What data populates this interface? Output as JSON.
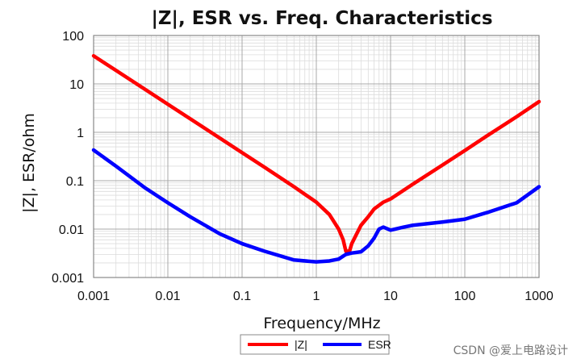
{
  "chart_data": {
    "type": "line",
    "title": "|Z|, ESR vs. Freq. Characteristics",
    "xlabel": "Frequency/MHz",
    "ylabel": "|Z|, ESR/ohm",
    "x_scale": "log",
    "y_scale": "log",
    "xlim": [
      0.001,
      1000
    ],
    "ylim": [
      0.001,
      100
    ],
    "x_ticks": [
      "0.001",
      "0.01",
      "0.1",
      "1",
      "10",
      "100",
      "1000"
    ],
    "y_ticks": [
      "100",
      "10",
      "1",
      "0.1",
      "0.01",
      "0.001"
    ],
    "grid": true,
    "legend_position": "bottom-center",
    "series": [
      {
        "name": "|Z|",
        "color": "#ff0000",
        "points": [
          [
            0.001,
            38
          ],
          [
            0.002,
            19
          ],
          [
            0.005,
            7.6
          ],
          [
            0.01,
            3.8
          ],
          [
            0.02,
            1.9
          ],
          [
            0.05,
            0.76
          ],
          [
            0.1,
            0.38
          ],
          [
            0.2,
            0.19
          ],
          [
            0.5,
            0.075
          ],
          [
            1,
            0.036
          ],
          [
            1.5,
            0.02
          ],
          [
            2,
            0.01
          ],
          [
            2.3,
            0.006
          ],
          [
            2.5,
            0.0035
          ],
          [
            2.8,
            0.0035
          ],
          [
            3,
            0.005
          ],
          [
            4,
            0.012
          ],
          [
            5,
            0.018
          ],
          [
            6,
            0.026
          ],
          [
            8,
            0.036
          ],
          [
            10,
            0.042
          ],
          [
            20,
            0.085
          ],
          [
            50,
            0.21
          ],
          [
            100,
            0.42
          ],
          [
            200,
            0.85
          ],
          [
            500,
            2.1
          ],
          [
            1000,
            4.3
          ]
        ]
      },
      {
        "name": "ESR",
        "color": "#0000ff",
        "points": [
          [
            0.001,
            0.43
          ],
          [
            0.002,
            0.2
          ],
          [
            0.005,
            0.07
          ],
          [
            0.01,
            0.035
          ],
          [
            0.02,
            0.018
          ],
          [
            0.05,
            0.008
          ],
          [
            0.1,
            0.005
          ],
          [
            0.2,
            0.0035
          ],
          [
            0.5,
            0.0023
          ],
          [
            1,
            0.0021
          ],
          [
            1.5,
            0.0022
          ],
          [
            2,
            0.0024
          ],
          [
            2.5,
            0.003
          ],
          [
            3,
            0.0032
          ],
          [
            4,
            0.0034
          ],
          [
            5,
            0.0045
          ],
          [
            6,
            0.0065
          ],
          [
            7,
            0.01
          ],
          [
            8,
            0.011
          ],
          [
            10,
            0.0095
          ],
          [
            15,
            0.011
          ],
          [
            20,
            0.012
          ],
          [
            50,
            0.014
          ],
          [
            100,
            0.016
          ],
          [
            200,
            0.022
          ],
          [
            500,
            0.035
          ],
          [
            1000,
            0.075
          ]
        ]
      }
    ]
  },
  "watermark": {
    "text": "CSDN @爱上电路设计"
  }
}
